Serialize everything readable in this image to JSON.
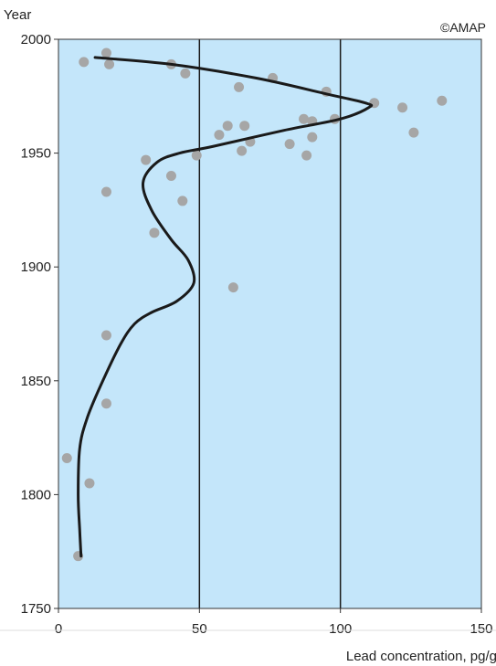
{
  "chart_data": {
    "type": "scatter",
    "xlabel": "Lead concentration, pg/g",
    "ylabel": "Year",
    "credit": "©AMAP",
    "xlim": [
      0,
      150
    ],
    "ylim": [
      1750,
      2000
    ],
    "x_ticks": [
      "0",
      "50",
      "100",
      "150"
    ],
    "y_ticks": [
      "1750",
      "1800",
      "1850",
      "1900",
      "1950",
      "2000"
    ],
    "vertical_reference_lines": [
      50,
      100
    ],
    "colors": {
      "plot_background": "#c4e6fa",
      "points": "#a6a6a6",
      "trend_line": "#1a1a1a",
      "reference_lines": "#1a1a1a"
    },
    "series": [
      {
        "kind": "points",
        "points": [
          [
            17,
            1994
          ],
          [
            9,
            1990
          ],
          [
            18,
            1989
          ],
          [
            40,
            1989
          ],
          [
            45,
            1985
          ],
          [
            76,
            1983
          ],
          [
            64,
            1979
          ],
          [
            95,
            1977
          ],
          [
            112,
            1972
          ],
          [
            136,
            1973
          ],
          [
            122,
            1970
          ],
          [
            87,
            1965
          ],
          [
            90,
            1964
          ],
          [
            98,
            1965
          ],
          [
            60,
            1962
          ],
          [
            66,
            1962
          ],
          [
            57,
            1958
          ],
          [
            90,
            1957
          ],
          [
            126,
            1959
          ],
          [
            68,
            1955
          ],
          [
            82,
            1954
          ],
          [
            65,
            1951
          ],
          [
            88,
            1949
          ],
          [
            49,
            1949
          ],
          [
            31,
            1947
          ],
          [
            40,
            1940
          ],
          [
            17,
            1933
          ],
          [
            44,
            1929
          ],
          [
            34,
            1915
          ],
          [
            62,
            1891
          ],
          [
            17,
            1870
          ],
          [
            17,
            1840
          ],
          [
            3,
            1816
          ],
          [
            11,
            1805
          ],
          [
            7,
            1773
          ]
        ]
      },
      {
        "kind": "trend",
        "points": [
          [
            13,
            1992
          ],
          [
            40,
            1989
          ],
          [
            70,
            1983
          ],
          [
            95,
            1976
          ],
          [
            109,
            1972
          ],
          [
            110,
            1970
          ],
          [
            100,
            1965
          ],
          [
            80,
            1960
          ],
          [
            55,
            1953
          ],
          [
            43,
            1950
          ],
          [
            35,
            1946
          ],
          [
            30,
            1937
          ],
          [
            33,
            1925
          ],
          [
            40,
            1912
          ],
          [
            46,
            1903
          ],
          [
            48,
            1893
          ],
          [
            42,
            1885
          ],
          [
            33,
            1880
          ],
          [
            27,
            1875
          ],
          [
            22,
            1866
          ],
          [
            15,
            1848
          ],
          [
            10,
            1833
          ],
          [
            7.5,
            1820
          ],
          [
            7,
            1800
          ],
          [
            7.5,
            1785
          ],
          [
            8,
            1773
          ]
        ]
      }
    ]
  }
}
